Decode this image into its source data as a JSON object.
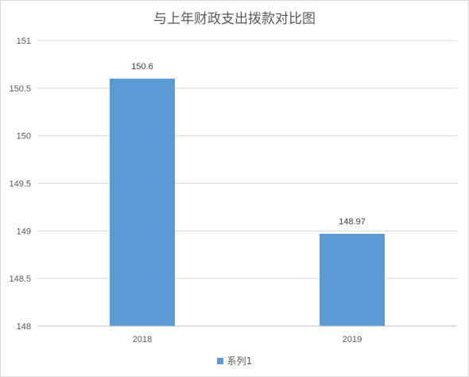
{
  "chart_data": {
    "type": "bar",
    "title": "与上年财政支出拨款对比图",
    "categories": [
      "2018",
      "2019"
    ],
    "series": [
      {
        "name": "系列1",
        "values": [
          150.6,
          148.97
        ],
        "color": "#5b9bd5"
      }
    ],
    "data_labels": [
      "150.6",
      "148.97"
    ],
    "ylim": [
      148,
      151
    ],
    "yticks": [
      "148",
      "148.5",
      "149",
      "149.5",
      "150",
      "150.5",
      "151"
    ],
    "grid": true,
    "legend": "bottom",
    "xlabel": "",
    "ylabel": ""
  }
}
